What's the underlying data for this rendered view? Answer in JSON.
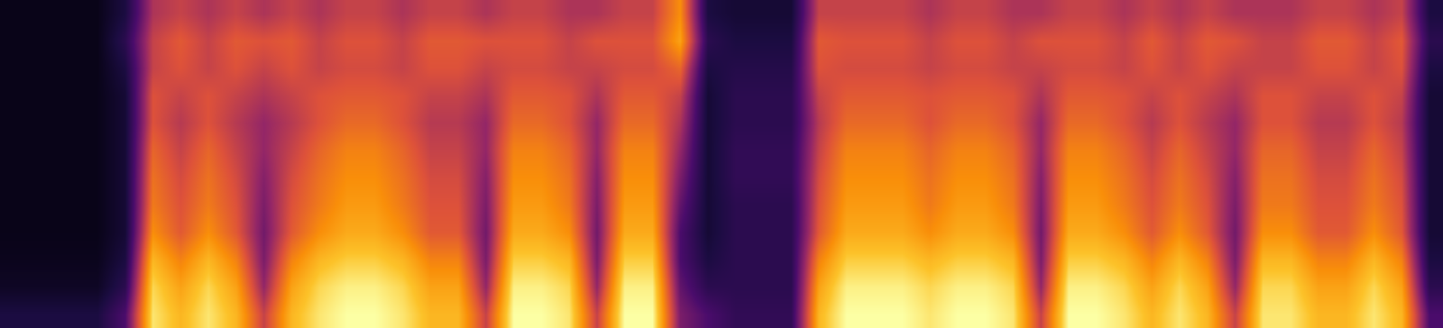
{
  "chart_data": {
    "type": "heatmap",
    "tick_labels": false,
    "zlim": [
      0,
      1
    ],
    "cells": [
      [
        0.15,
        0.15,
        0.15,
        0.15,
        0.3,
        0.95,
        0.85,
        0.95,
        0.85,
        0.55,
        0.85,
        0.95,
        1,
        1,
        0.95,
        0.85,
        0.85,
        0.55,
        1,
        1,
        0.95,
        0.55,
        1,
        1,
        0.4,
        0.3,
        0.22,
        0.22,
        0.22,
        0.85,
        1,
        1,
        1,
        0.95,
        1,
        1,
        0.95,
        0.55,
        1,
        1,
        0.95,
        0.85,
        0.95,
        0.85,
        0.55,
        0.95,
        0.95,
        0.85,
        0.85,
        0.95,
        0.85,
        0.3
      ],
      [
        0.08,
        0.08,
        0.08,
        0.08,
        0.2,
        0.92,
        0.8,
        0.92,
        0.8,
        0.45,
        0.8,
        0.92,
        0.97,
        0.97,
        0.92,
        0.8,
        0.8,
        0.45,
        0.97,
        0.97,
        0.92,
        0.45,
        0.97,
        0.97,
        0.35,
        0.2,
        0.2,
        0.2,
        0.2,
        0.8,
        0.97,
        0.97,
        0.97,
        0.92,
        0.97,
        0.97,
        0.92,
        0.45,
        0.97,
        0.97,
        0.92,
        0.8,
        0.92,
        0.8,
        0.45,
        0.92,
        0.92,
        0.8,
        0.8,
        0.92,
        0.8,
        0.2
      ],
      [
        0.06,
        0.06,
        0.06,
        0.06,
        0.15,
        0.85,
        0.72,
        0.85,
        0.72,
        0.4,
        0.72,
        0.85,
        0.9,
        0.9,
        0.85,
        0.72,
        0.72,
        0.4,
        0.9,
        0.9,
        0.85,
        0.4,
        0.9,
        0.9,
        0.3,
        0.15,
        0.2,
        0.2,
        0.2,
        0.72,
        0.9,
        0.9,
        0.9,
        0.85,
        0.9,
        0.9,
        0.85,
        0.4,
        0.9,
        0.9,
        0.85,
        0.72,
        0.85,
        0.72,
        0.4,
        0.85,
        0.85,
        0.72,
        0.72,
        0.85,
        0.72,
        0.15
      ],
      [
        0.05,
        0.05,
        0.05,
        0.05,
        0.12,
        0.75,
        0.62,
        0.75,
        0.62,
        0.38,
        0.62,
        0.75,
        0.82,
        0.82,
        0.75,
        0.62,
        0.62,
        0.38,
        0.82,
        0.82,
        0.75,
        0.38,
        0.82,
        0.82,
        0.3,
        0.12,
        0.2,
        0.2,
        0.2,
        0.62,
        0.82,
        0.82,
        0.82,
        0.75,
        0.82,
        0.82,
        0.75,
        0.38,
        0.82,
        0.82,
        0.75,
        0.62,
        0.75,
        0.62,
        0.38,
        0.75,
        0.75,
        0.62,
        0.62,
        0.75,
        0.62,
        0.12
      ],
      [
        0.05,
        0.05,
        0.05,
        0.05,
        0.12,
        0.7,
        0.6,
        0.7,
        0.6,
        0.4,
        0.6,
        0.7,
        0.78,
        0.78,
        0.7,
        0.6,
        0.6,
        0.4,
        0.78,
        0.78,
        0.7,
        0.4,
        0.78,
        0.78,
        0.35,
        0.12,
        0.2,
        0.2,
        0.2,
        0.6,
        0.78,
        0.78,
        0.78,
        0.7,
        0.78,
        0.78,
        0.7,
        0.4,
        0.78,
        0.78,
        0.7,
        0.6,
        0.7,
        0.6,
        0.4,
        0.7,
        0.7,
        0.6,
        0.6,
        0.7,
        0.6,
        0.12
      ],
      [
        0.05,
        0.05,
        0.05,
        0.05,
        0.12,
        0.68,
        0.58,
        0.68,
        0.58,
        0.42,
        0.58,
        0.68,
        0.75,
        0.75,
        0.68,
        0.58,
        0.58,
        0.42,
        0.75,
        0.75,
        0.68,
        0.42,
        0.75,
        0.75,
        0.4,
        0.12,
        0.22,
        0.22,
        0.22,
        0.58,
        0.75,
        0.75,
        0.75,
        0.68,
        0.75,
        0.75,
        0.68,
        0.42,
        0.75,
        0.75,
        0.68,
        0.58,
        0.68,
        0.58,
        0.42,
        0.68,
        0.68,
        0.58,
        0.58,
        0.68,
        0.58,
        0.12
      ],
      [
        0.05,
        0.05,
        0.05,
        0.05,
        0.12,
        0.65,
        0.55,
        0.65,
        0.55,
        0.45,
        0.55,
        0.65,
        0.72,
        0.72,
        0.65,
        0.55,
        0.55,
        0.45,
        0.72,
        0.72,
        0.65,
        0.45,
        0.72,
        0.72,
        0.45,
        0.12,
        0.22,
        0.22,
        0.22,
        0.55,
        0.72,
        0.72,
        0.72,
        0.65,
        0.72,
        0.72,
        0.65,
        0.45,
        0.72,
        0.72,
        0.65,
        0.55,
        0.65,
        0.55,
        0.45,
        0.65,
        0.65,
        0.55,
        0.55,
        0.65,
        0.55,
        0.12
      ],
      [
        0.05,
        0.05,
        0.05,
        0.05,
        0.12,
        0.6,
        0.52,
        0.6,
        0.52,
        0.45,
        0.52,
        0.6,
        0.66,
        0.66,
        0.6,
        0.52,
        0.52,
        0.45,
        0.66,
        0.66,
        0.6,
        0.45,
        0.66,
        0.66,
        0.5,
        0.12,
        0.2,
        0.2,
        0.2,
        0.52,
        0.66,
        0.66,
        0.66,
        0.6,
        0.66,
        0.66,
        0.6,
        0.45,
        0.66,
        0.66,
        0.6,
        0.52,
        0.6,
        0.52,
        0.45,
        0.6,
        0.6,
        0.52,
        0.52,
        0.6,
        0.52,
        0.12
      ],
      [
        0.05,
        0.05,
        0.05,
        0.05,
        0.12,
        0.6,
        0.55,
        0.6,
        0.55,
        0.5,
        0.55,
        0.6,
        0.62,
        0.62,
        0.6,
        0.55,
        0.55,
        0.5,
        0.62,
        0.62,
        0.6,
        0.5,
        0.62,
        0.62,
        0.55,
        0.12,
        0.2,
        0.2,
        0.2,
        0.55,
        0.62,
        0.62,
        0.62,
        0.6,
        0.62,
        0.62,
        0.6,
        0.5,
        0.62,
        0.62,
        0.6,
        0.55,
        0.6,
        0.55,
        0.5,
        0.6,
        0.6,
        0.55,
        0.55,
        0.6,
        0.55,
        0.12
      ],
      [
        0.05,
        0.05,
        0.05,
        0.05,
        0.15,
        0.55,
        0.6,
        0.55,
        0.6,
        0.55,
        0.6,
        0.55,
        0.58,
        0.58,
        0.55,
        0.6,
        0.6,
        0.55,
        0.58,
        0.58,
        0.55,
        0.55,
        0.58,
        0.58,
        0.65,
        0.15,
        0.18,
        0.18,
        0.18,
        0.6,
        0.58,
        0.58,
        0.58,
        0.55,
        0.58,
        0.58,
        0.55,
        0.55,
        0.58,
        0.58,
        0.55,
        0.6,
        0.55,
        0.6,
        0.55,
        0.55,
        0.55,
        0.6,
        0.6,
        0.55,
        0.6,
        0.15
      ],
      [
        0.05,
        0.05,
        0.05,
        0.05,
        0.2,
        0.55,
        0.62,
        0.55,
        0.62,
        0.6,
        0.62,
        0.55,
        0.6,
        0.6,
        0.55,
        0.62,
        0.62,
        0.6,
        0.6,
        0.6,
        0.55,
        0.6,
        0.6,
        0.6,
        0.8,
        0.2,
        0.15,
        0.15,
        0.15,
        0.62,
        0.6,
        0.6,
        0.6,
        0.55,
        0.6,
        0.6,
        0.55,
        0.6,
        0.6,
        0.6,
        0.55,
        0.62,
        0.55,
        0.62,
        0.6,
        0.55,
        0.55,
        0.62,
        0.62,
        0.55,
        0.62,
        0.2
      ],
      [
        0.05,
        0.05,
        0.05,
        0.05,
        0.15,
        0.5,
        0.55,
        0.5,
        0.55,
        0.5,
        0.55,
        0.5,
        0.55,
        0.55,
        0.5,
        0.55,
        0.55,
        0.5,
        0.55,
        0.55,
        0.5,
        0.5,
        0.55,
        0.55,
        0.75,
        0.15,
        0.12,
        0.12,
        0.12,
        0.55,
        0.55,
        0.55,
        0.55,
        0.5,
        0.55,
        0.55,
        0.5,
        0.5,
        0.55,
        0.55,
        0.5,
        0.55,
        0.5,
        0.55,
        0.5,
        0.5,
        0.5,
        0.55,
        0.55,
        0.5,
        0.55,
        0.15
      ]
    ]
  }
}
